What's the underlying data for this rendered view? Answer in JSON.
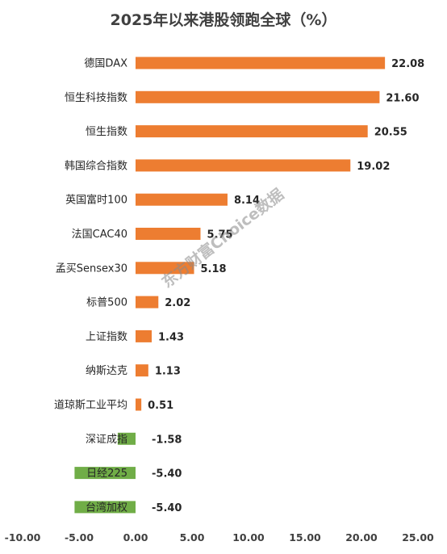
{
  "chart_data": {
    "type": "bar",
    "orientation": "horizontal",
    "title": "2025年以来港股领跑全球（%）",
    "categories": [
      "德国DAX",
      "恒生科技指数",
      "恒生指数",
      "韩国综合指数",
      "英国富时100",
      "法国CAC40",
      "孟买Sensex30",
      "标普500",
      "上证指数",
      "纳斯达克",
      "道琼斯工业平均",
      "深证成指",
      "日经225",
      "台湾加权"
    ],
    "values": [
      22.08,
      21.6,
      20.55,
      19.02,
      8.14,
      5.75,
      5.18,
      2.02,
      1.43,
      1.13,
      0.51,
      -1.58,
      -5.4,
      -5.4
    ],
    "value_labels": [
      "22.08",
      "21.60",
      "20.55",
      "19.02",
      "8.14",
      "5.75",
      "5.18",
      "2.02",
      "1.43",
      "1.13",
      "0.51",
      "-1.58",
      "-5.40",
      "-5.40"
    ],
    "xlim": [
      -10,
      25
    ],
    "x_ticks": [
      -10,
      -5,
      0,
      5,
      10,
      15,
      20,
      25
    ],
    "x_tick_labels": [
      "-10.00",
      "-5.00",
      "0.00",
      "5.00",
      "10.00",
      "15.00",
      "20.00",
      "25.00"
    ],
    "xlabel": "",
    "ylabel": "",
    "grid": false,
    "legend": "none",
    "colors": {
      "positive": "#ED7D31",
      "negative": "#70AD47"
    },
    "watermark": "东方财富Choice数据"
  }
}
